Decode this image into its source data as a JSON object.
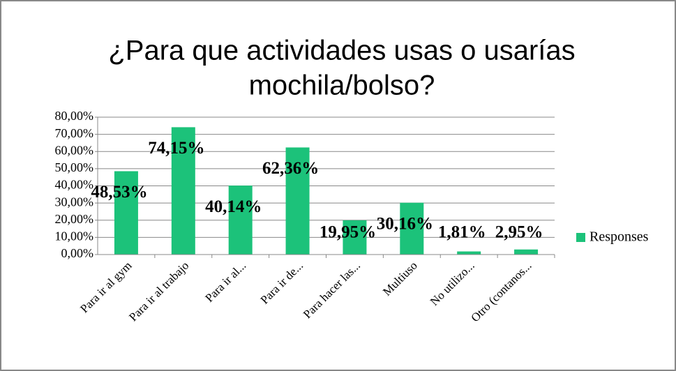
{
  "chart_data": {
    "type": "bar",
    "title": "¿Para que actividades usas o usarías mochila/bolso?",
    "categories": [
      "Para ir al gym",
      "Para ir al trabajo",
      "Para ir al...",
      "Para ir de...",
      "Para hacer las...",
      "Multiuso",
      "No utilizo...",
      "Otro (contanos..."
    ],
    "series": [
      {
        "name": "Responses",
        "color": "#1cc27a",
        "values": [
          48.53,
          74.15,
          40.14,
          62.36,
          19.95,
          30.16,
          1.81,
          2.95
        ],
        "value_labels": [
          "48,53%",
          "74,15%",
          "40,14%",
          "62,36%",
          "19,95%",
          "30,16%",
          "1,81%",
          "2,95%"
        ]
      }
    ],
    "ylim": [
      0,
      80
    ],
    "yticks": [
      {
        "value": 0,
        "label": "0,00%"
      },
      {
        "value": 10,
        "label": "10,00%"
      },
      {
        "value": 20,
        "label": "20,00%"
      },
      {
        "value": 30,
        "label": "30,00%"
      },
      {
        "value": 40,
        "label": "40,00%"
      },
      {
        "value": 50,
        "label": "50,00%"
      },
      {
        "value": 60,
        "label": "60,00%"
      },
      {
        "value": 70,
        "label": "70,00%"
      },
      {
        "value": 80,
        "label": "80,00%"
      }
    ],
    "grid": true,
    "legend": "right"
  }
}
